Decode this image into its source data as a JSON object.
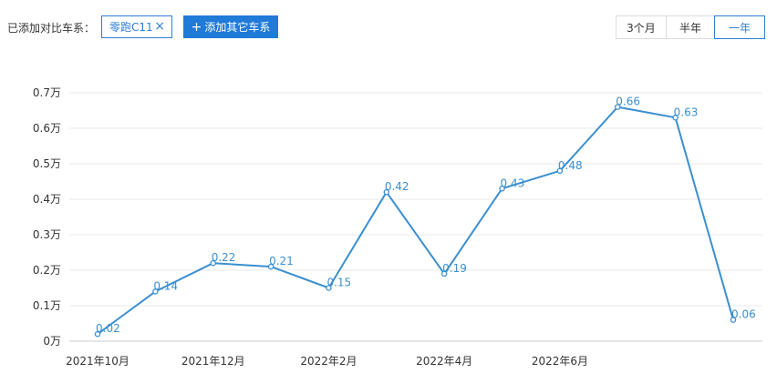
{
  "toolbar": {
    "compare_label": "已添加对比车系：",
    "car_tag_label": "零跑C11",
    "car_tag_close": "×",
    "add_button_icon": "+",
    "add_button_label": "添加其它车系",
    "range_options": [
      "3个月",
      "半年",
      "一年"
    ],
    "active_range": "一年"
  },
  "colors": {
    "accent": "#1f7ad8",
    "line": "#3a8fd0",
    "grid": "#e8e8e8"
  },
  "chart_data": {
    "type": "line",
    "title": "",
    "xlabel": "",
    "ylabel": "",
    "ylim": [
      0,
      0.7
    ],
    "y_ticks": [
      "0万",
      "0.1万",
      "0.2万",
      "0.3万",
      "0.4万",
      "0.5万",
      "0.6万",
      "0.7万"
    ],
    "x_tick_labels": [
      "2021年10月",
      "2021年12月",
      "2022年2月",
      "2022年4月",
      "2022年6月"
    ],
    "x": [
      "2021年10月",
      "2021年11月",
      "2021年12月",
      "2022年1月",
      "2022年2月",
      "2022年3月",
      "2022年4月",
      "2022年5月",
      "2022年6月",
      "2022年7月",
      "2022年8月",
      "2022年9月"
    ],
    "series": [
      {
        "name": "零跑C11",
        "values": [
          0.02,
          0.14,
          0.22,
          0.21,
          0.15,
          0.42,
          0.19,
          0.43,
          0.48,
          0.66,
          0.63,
          0.06
        ]
      }
    ],
    "grid": true,
    "legend": "none"
  }
}
